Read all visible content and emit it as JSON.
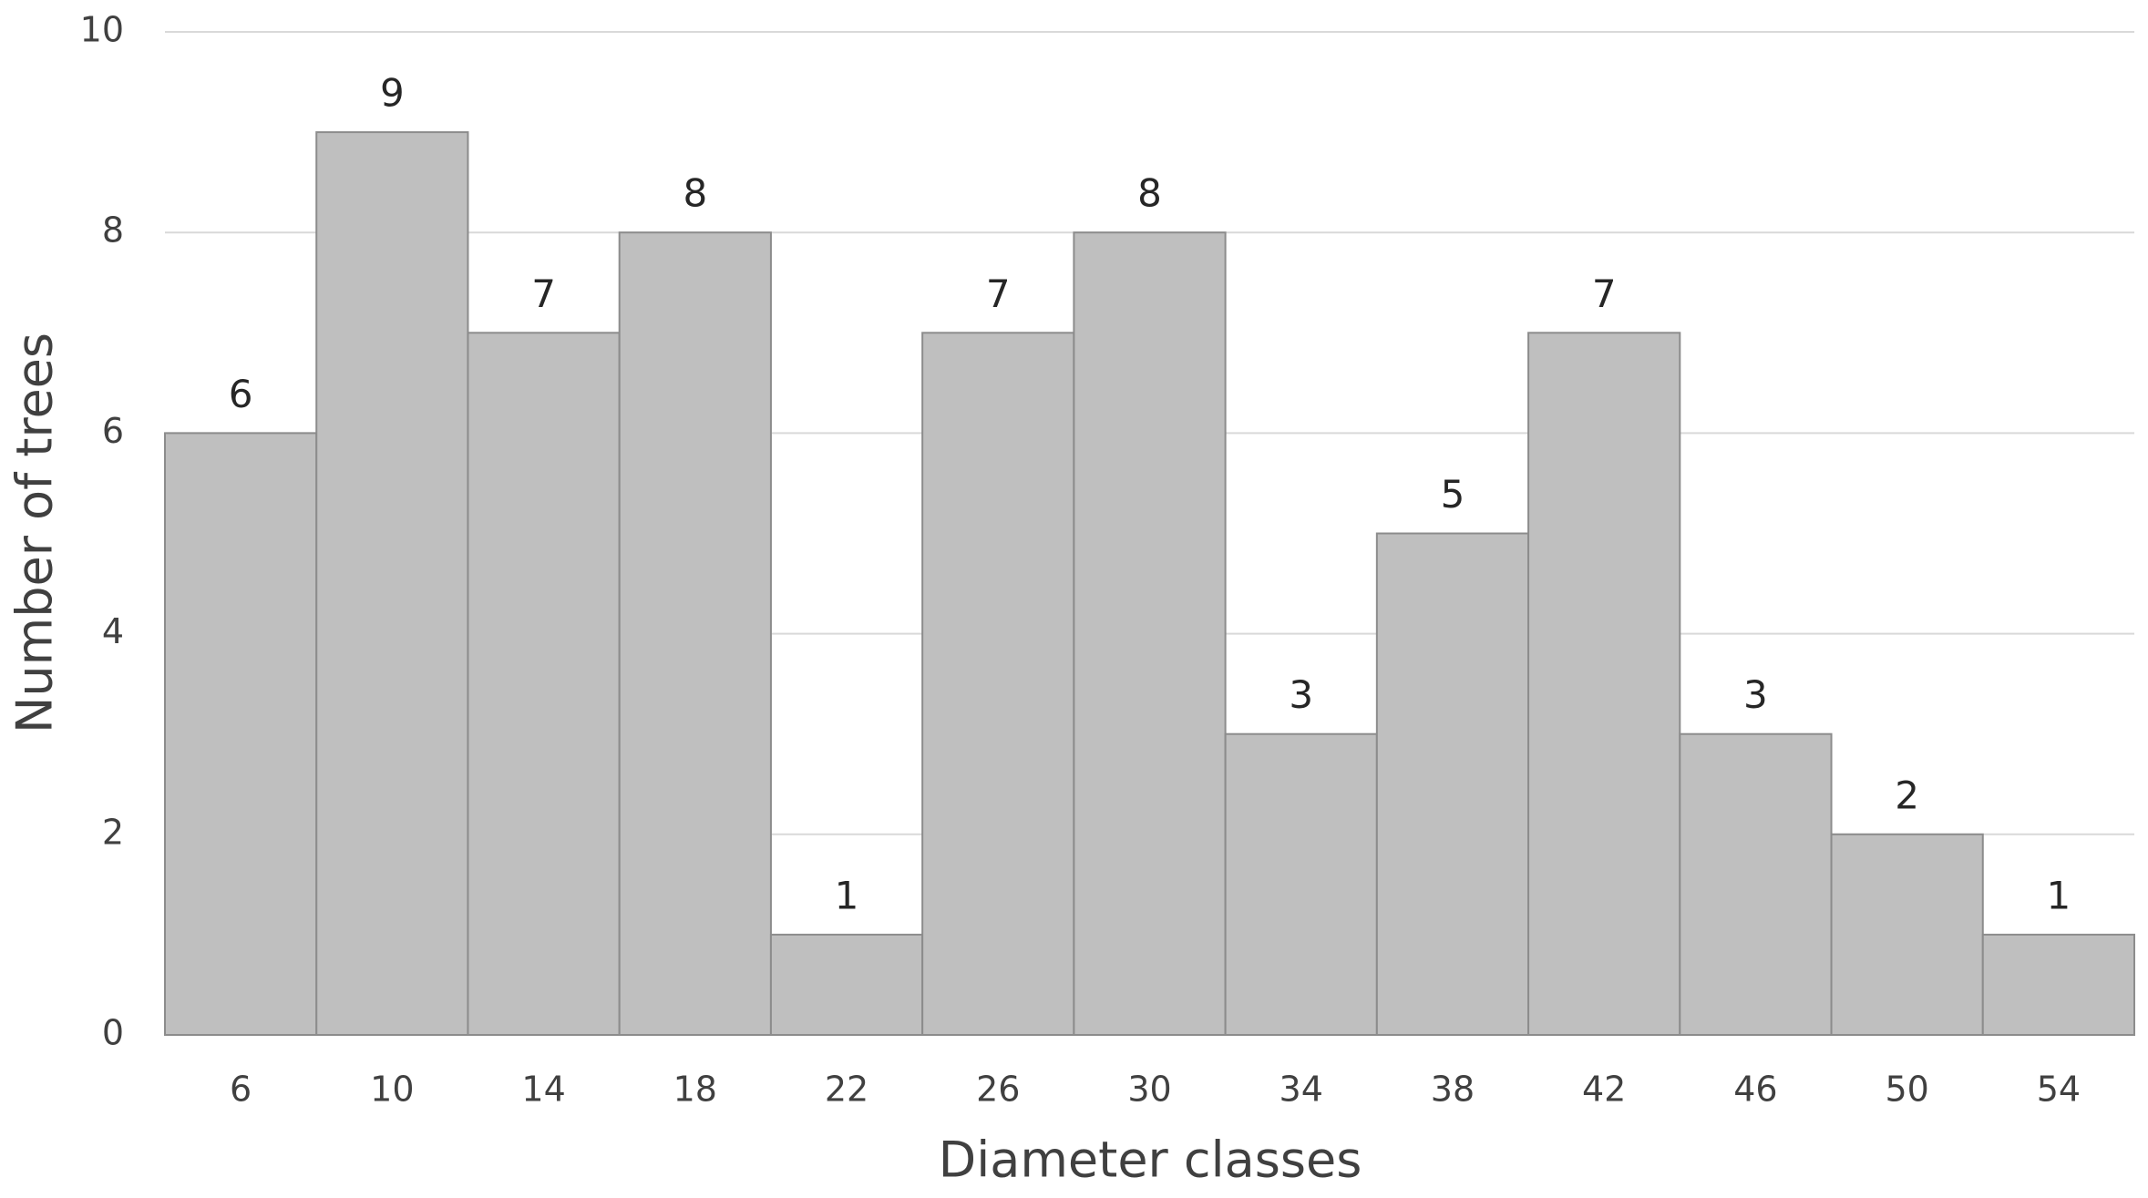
{
  "chart_data": {
    "type": "bar",
    "x_label": "Diameter classes",
    "y_label": "Number of trees",
    "categories": [
      "6",
      "10",
      "14",
      "18",
      "22",
      "26",
      "30",
      "34",
      "38",
      "42",
      "46",
      "50",
      "54"
    ],
    "values": [
      6,
      9,
      7,
      8,
      1,
      7,
      8,
      3,
      5,
      7,
      3,
      2,
      1
    ],
    "color": "#bfbfbf",
    "ylim": [
      0,
      10
    ],
    "yticks": [
      0,
      2,
      4,
      6,
      8,
      10
    ],
    "grid": true
  }
}
